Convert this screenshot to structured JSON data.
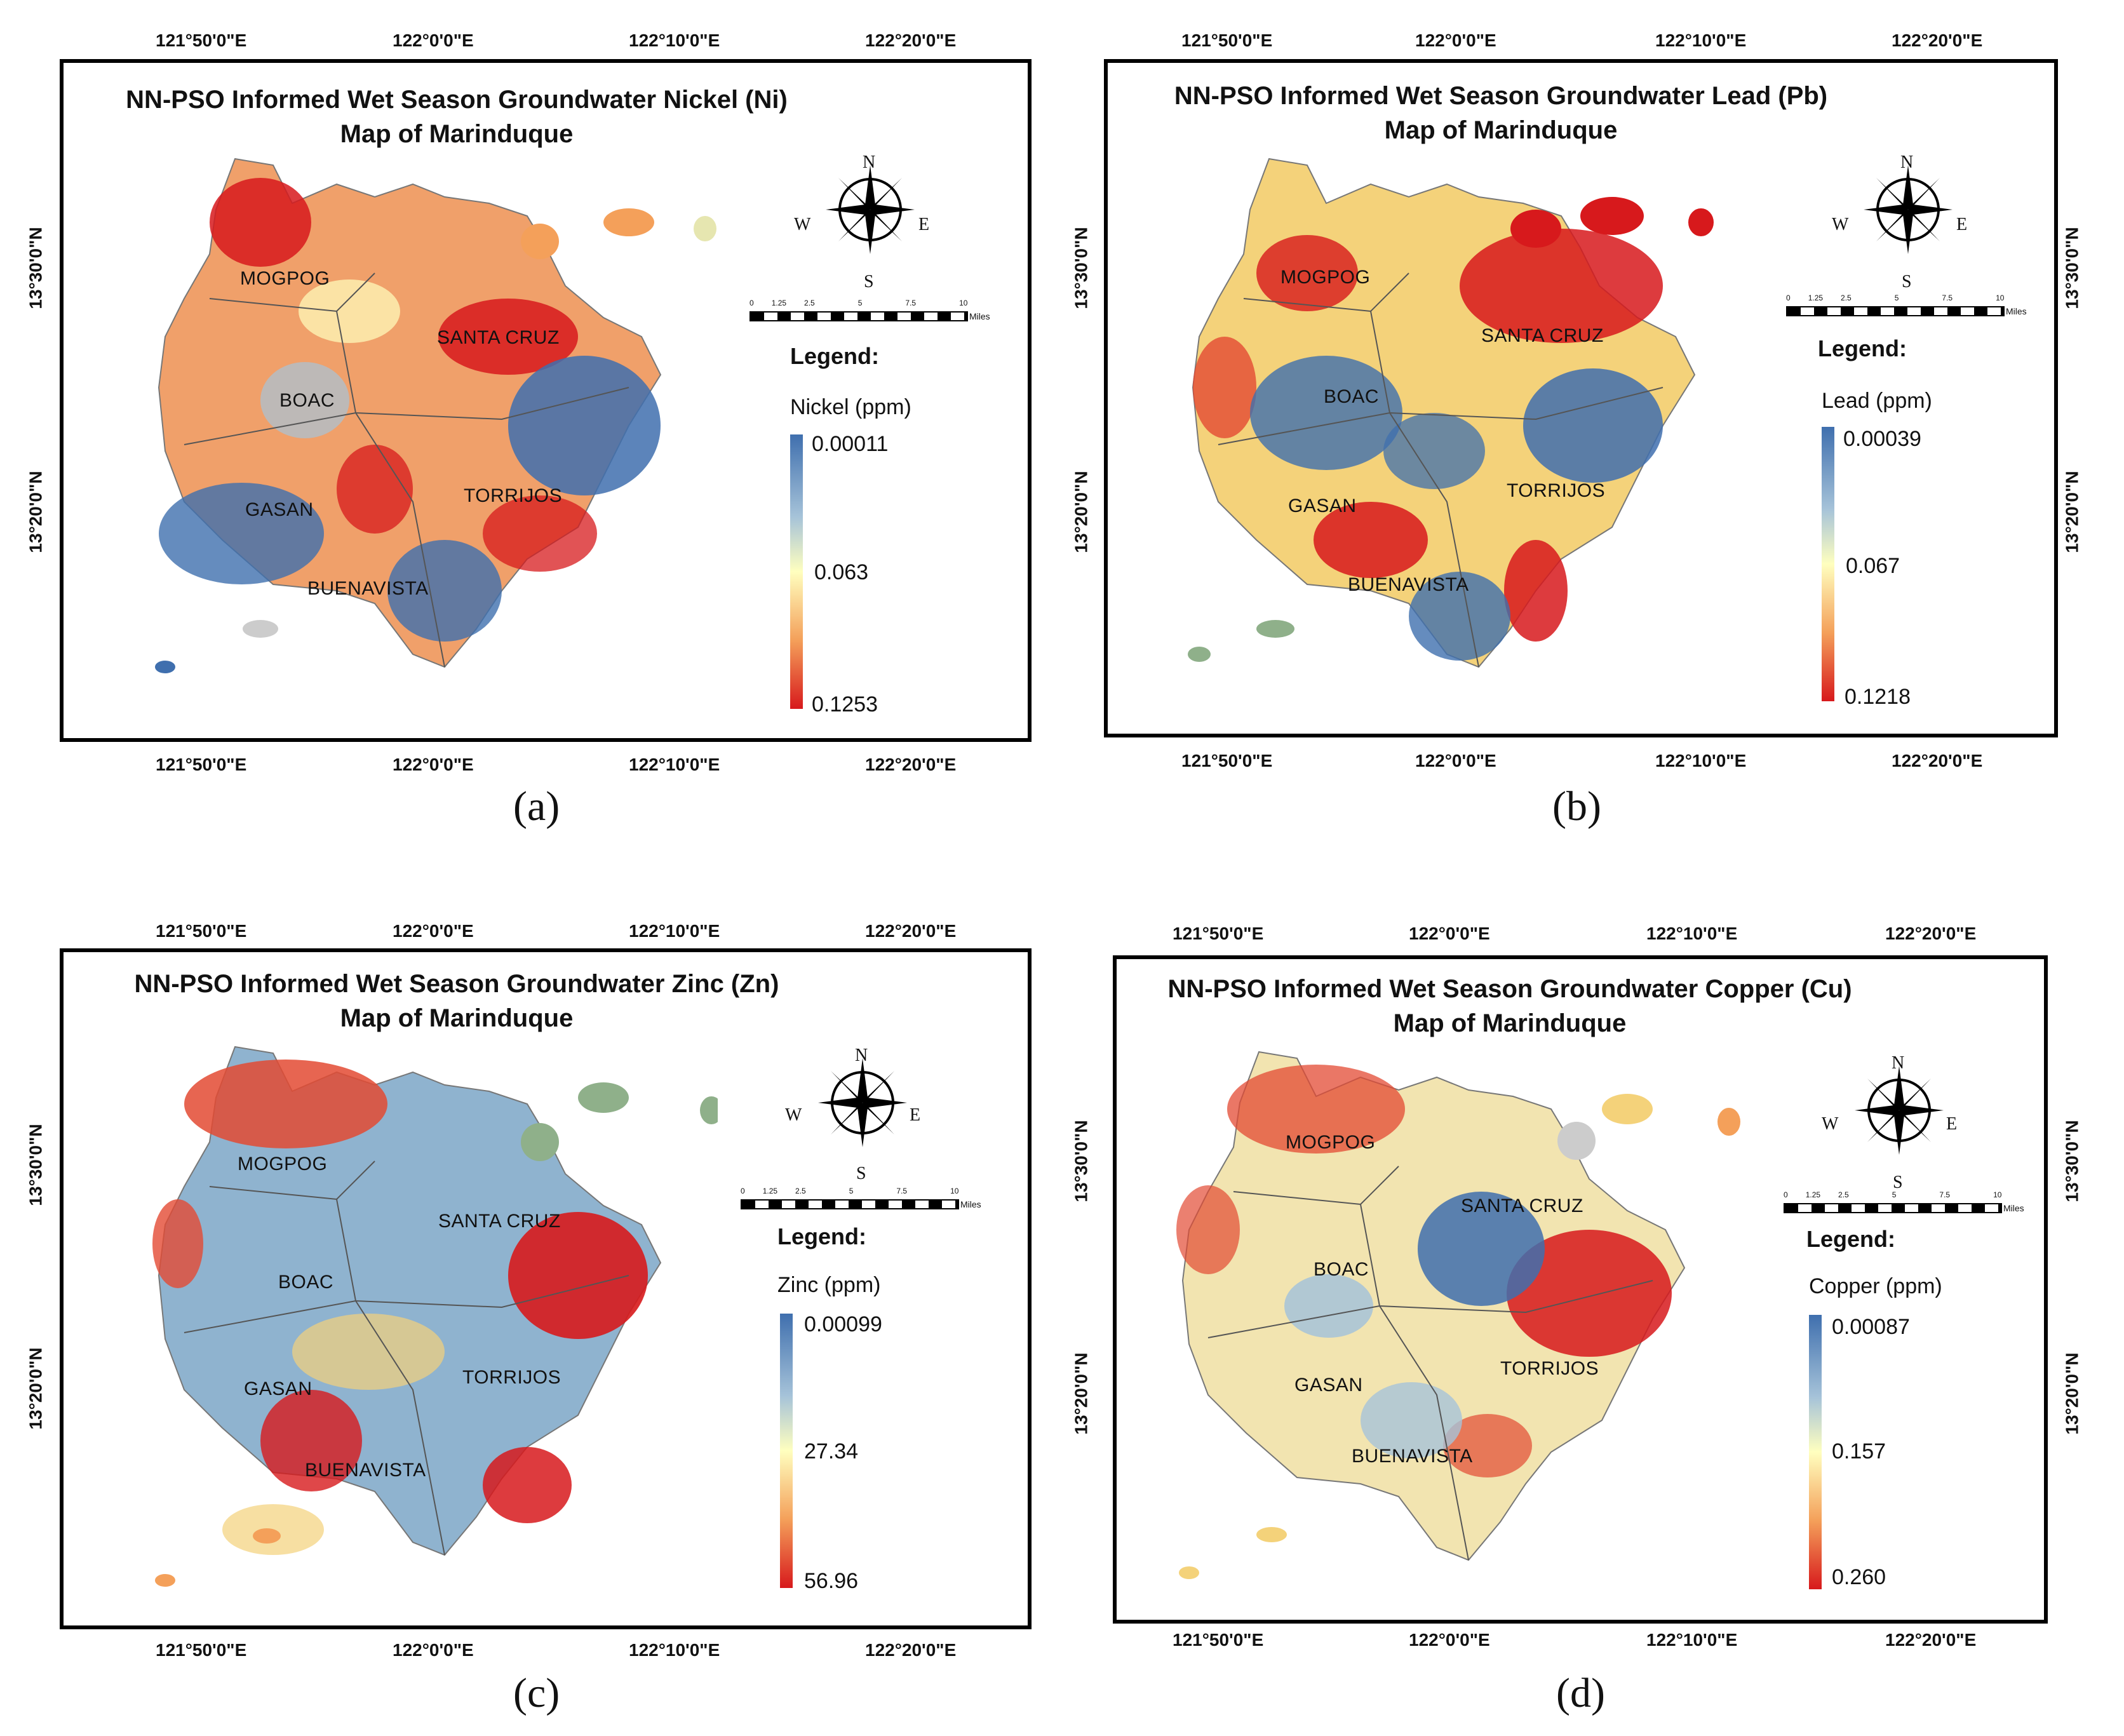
{
  "colors": {
    "high": "#d7191c",
    "mid_high": "#f4a05a",
    "mid": "#ffffbf",
    "mid_low": "#a6c3d9",
    "low": "#3f6fae"
  },
  "common": {
    "lon_labels": [
      "121°50'0\"E",
      "122°0'0\"E",
      "122°10'0\"E",
      "122°20'0\"E"
    ],
    "lat_labels": [
      "13°30'0\"N",
      "13°20'0\"N"
    ],
    "legend_label": "Legend:",
    "compass": {
      "n": "N",
      "s": "S",
      "e": "E",
      "w": "W"
    },
    "scale": {
      "ticks": [
        "0",
        "1.25",
        "2.5",
        "5",
        "7.5",
        "10"
      ],
      "unit": "Miles"
    },
    "municipalities": [
      "MOGPOG",
      "SANTA CRUZ",
      "BOAC",
      "GASAN",
      "TORRIJOS",
      "BUENAVISTA"
    ]
  },
  "panels": [
    {
      "id": "a",
      "caption": "(a)",
      "title_line1": "NN-PSO Informed Wet Season Groundwater Nickel (Ni)",
      "title_line2": "Map of Marinduque",
      "unit": "Nickel (ppm)",
      "max": "0.00011",
      "mid": "0.063",
      "min": "0.1253"
    },
    {
      "id": "b",
      "caption": "(b)",
      "title_line1": "NN-PSO Informed Wet Season Groundwater Lead (Pb)",
      "title_line2": "Map of Marinduque",
      "unit": "Lead (ppm)",
      "max": "0.00039",
      "mid": "0.067",
      "min": "0.1218"
    },
    {
      "id": "c",
      "caption": "(c)",
      "title_line1": "NN-PSO Informed Wet Season Groundwater Zinc (Zn)",
      "title_line2": "Map of Marinduque",
      "unit": "Zinc (ppm)",
      "max": "0.00099",
      "mid": "27.34",
      "min": "56.96"
    },
    {
      "id": "d",
      "caption": "(d)",
      "title_line1": "NN-PSO Informed Wet Season Groundwater Copper (Cu)",
      "title_line2": "Map of Marinduque",
      "unit": "Copper (ppm)",
      "max": "0.00087",
      "mid": "0.157",
      "min": "0.260"
    }
  ]
}
